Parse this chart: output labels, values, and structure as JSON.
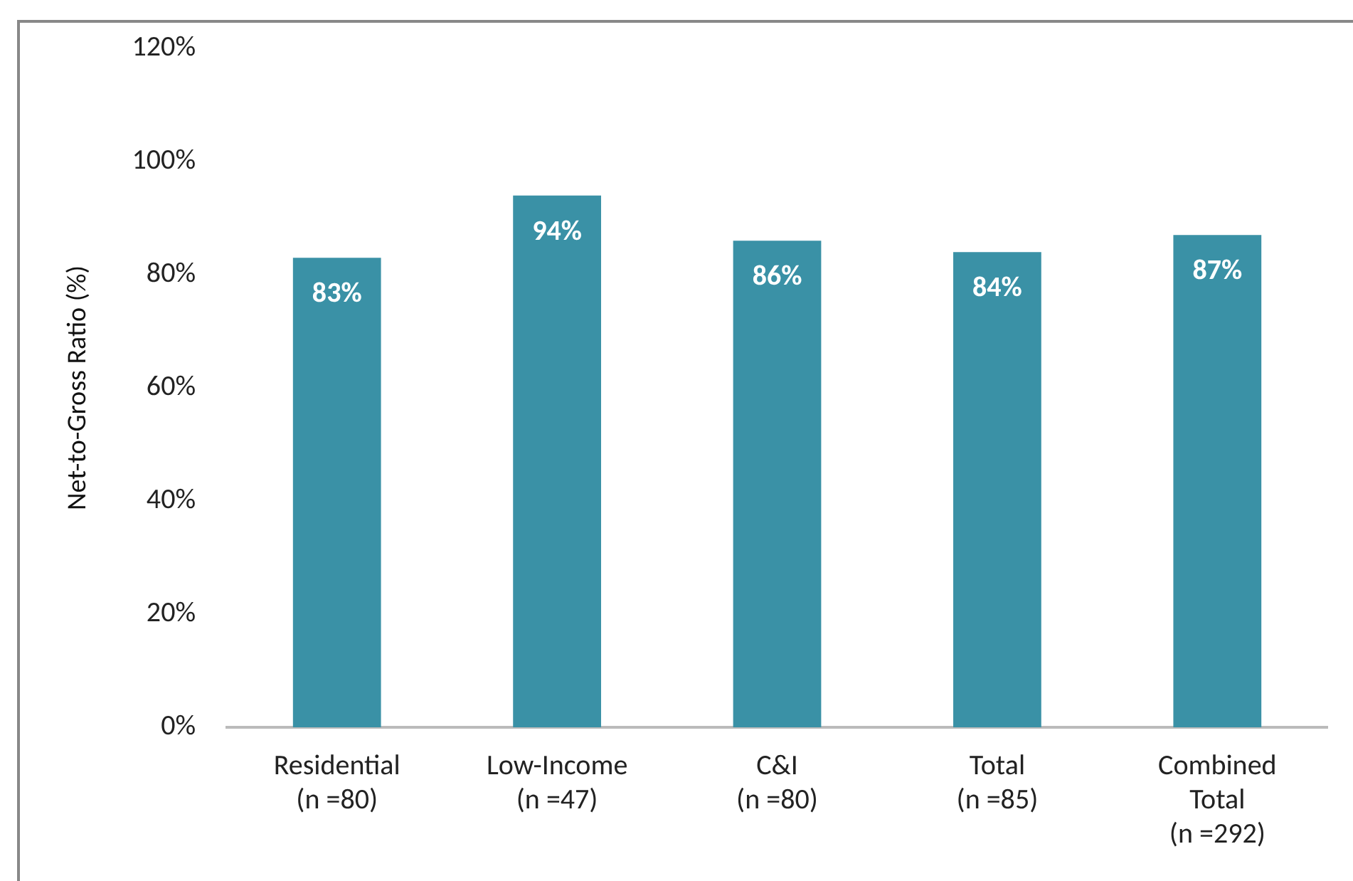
{
  "chart_data": {
    "type": "bar",
    "ylabel": "Net-to-Gross Ratio (%)",
    "categories": [
      "Residential\n(n =80)",
      "Low-Income\n(n =47)",
      "C&I\n(n =80)",
      "Total\n(n =85)",
      "Combined\nTotal\n(n =292)"
    ],
    "values": [
      83,
      94,
      86,
      84,
      87
    ],
    "color": "#3a91a6",
    "value_labels": [
      "83%",
      "94%",
      "86%",
      "84%",
      "87%"
    ],
    "ylim": [
      0,
      120
    ],
    "yticks": [
      {
        "value": 0,
        "label": "0%"
      },
      {
        "value": 20,
        "label": "20%"
      },
      {
        "value": 40,
        "label": "40%"
      },
      {
        "value": 60,
        "label": "60%"
      },
      {
        "value": 80,
        "label": "80%"
      },
      {
        "value": 100,
        "label": "100%"
      },
      {
        "value": 120,
        "label": "120%"
      }
    ],
    "grid": false,
    "legend": false
  }
}
